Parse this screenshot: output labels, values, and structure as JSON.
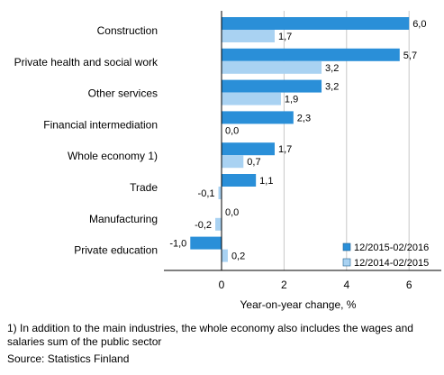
{
  "chart_data": {
    "type": "bar",
    "orientation": "horizontal",
    "categories": [
      "Construction",
      "Private health and social work",
      "Other services",
      "Financial intermediation",
      "Whole economy 1)",
      "Trade",
      "Manufacturing",
      "Private education"
    ],
    "series": [
      {
        "name": "12/2015-02/2016",
        "color": "#2a8fd8",
        "values": [
          6.0,
          5.7,
          3.2,
          2.3,
          1.7,
          1.1,
          0.0,
          -1.0
        ],
        "labels": [
          "6,0",
          "5,7",
          "3,2",
          "2,3",
          "1,7",
          "1,1",
          "0,0",
          "-1,0"
        ]
      },
      {
        "name": "12/2014-02/2015",
        "color": "#a9d2f2",
        "values": [
          1.7,
          3.2,
          1.9,
          0.0,
          0.7,
          -0.1,
          -0.2,
          0.2
        ],
        "labels": [
          "1,7",
          "3,2",
          "1,9",
          "0,0",
          "0,7",
          "-0,1",
          "-0,2",
          "0,2"
        ]
      }
    ],
    "xlabel": "Year-on-year change, %",
    "xlim": [
      -2,
      7
    ],
    "xticks": [
      0,
      2,
      4,
      6
    ],
    "xtick_labels": [
      "0",
      "2",
      "4",
      "6"
    ],
    "grid": true,
    "legend_position": "bottom-right"
  },
  "footnote": "1) In addition to the main industries, the whole economy also includes the wages and salaries sum of the public sector",
  "source": "Source: Statistics Finland"
}
